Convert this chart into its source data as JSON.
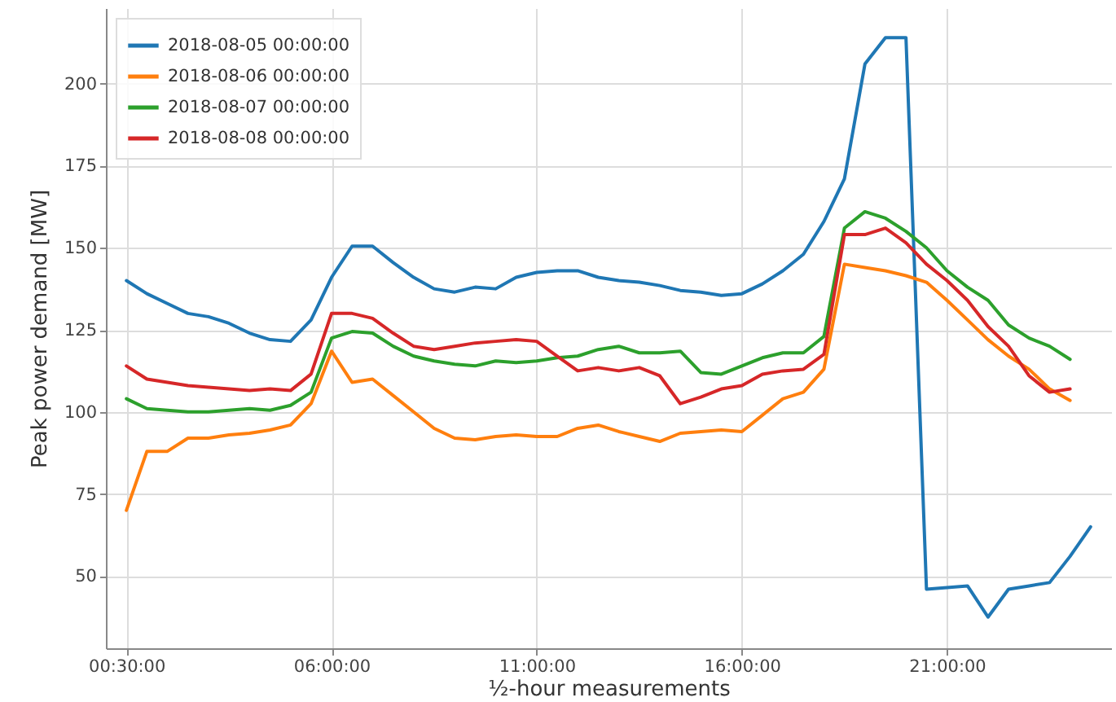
{
  "chart_data": {
    "type": "line",
    "xlabel": "½-hour measurements",
    "ylabel": "Peak power demand [MW]",
    "categories": [
      "00:30:00",
      null,
      null,
      null,
      null,
      null,
      null,
      null,
      null,
      null,
      "06:00:00",
      null,
      null,
      null,
      null,
      null,
      null,
      null,
      null,
      null,
      "11:00:00",
      null,
      null,
      null,
      null,
      null,
      null,
      null,
      null,
      null,
      "16:00:00",
      null,
      null,
      null,
      null,
      null,
      null,
      null,
      null,
      null,
      "21:00:00",
      null,
      null,
      null,
      null,
      null,
      null,
      null
    ],
    "series": [
      {
        "name": "2018-08-05 00:00:00",
        "color": "#1f77b4",
        "values": [
          140,
          136,
          133,
          130,
          129,
          127,
          124,
          122,
          121.5,
          128,
          141,
          150.5,
          150.5,
          145.5,
          141,
          137.5,
          136.5,
          138,
          137.5,
          141,
          142.5,
          143,
          143,
          141,
          140,
          139.5,
          138.5,
          137,
          136.5,
          135.5,
          136,
          139,
          143,
          148,
          158,
          171,
          206,
          214,
          214,
          46,
          46.5,
          47,
          37.5,
          46,
          47,
          48,
          56,
          65
        ]
      },
      {
        "name": "2018-08-06 00:00:00",
        "color": "#ff7f0e",
        "values": [
          70,
          88,
          88,
          92,
          92,
          93,
          93.5,
          94.5,
          96,
          102.5,
          118.5,
          109,
          110,
          105,
          100,
          95,
          92,
          91.5,
          92.5,
          93,
          92.5,
          92.5,
          95,
          96,
          94,
          92.5,
          91,
          93.5,
          94,
          94.5,
          94,
          99,
          104,
          106,
          113,
          145,
          144,
          143,
          141.5,
          139.5,
          134,
          128,
          122,
          117,
          113,
          107,
          103.5,
          null
        ]
      },
      {
        "name": "2018-08-07 00:00:00",
        "color": "#2ca02c",
        "values": [
          104,
          101,
          100.5,
          100,
          100,
          100.5,
          101,
          100.5,
          102,
          106,
          122.5,
          124.5,
          124,
          120,
          117,
          115.5,
          114.5,
          114,
          115.5,
          115,
          115.5,
          116.5,
          117,
          119,
          120,
          118,
          118,
          118.5,
          112,
          111.5,
          114,
          116.5,
          118,
          118,
          123,
          156,
          161,
          159,
          155,
          150,
          143,
          138,
          134,
          126.5,
          122.5,
          120,
          116,
          null
        ]
      },
      {
        "name": "2018-08-08 00:00:00",
        "color": "#d62728",
        "values": [
          114,
          110,
          109,
          108,
          107.5,
          107,
          106.5,
          107,
          106.5,
          111.5,
          130,
          130,
          128.5,
          124,
          120,
          119,
          120,
          121,
          121.5,
          122,
          121.5,
          117,
          112.5,
          113.5,
          112.5,
          113.5,
          111,
          102.5,
          104.5,
          107,
          108,
          111.5,
          112.5,
          113,
          117.5,
          154,
          154,
          156,
          151.5,
          145,
          140,
          134,
          126,
          120,
          111,
          106,
          107,
          null
        ]
      }
    ],
    "ylim": [
      28,
      223
    ],
    "yticks": [
      50,
      75,
      100,
      125,
      150,
      175,
      200
    ],
    "grid": true,
    "legend": "top left"
  }
}
